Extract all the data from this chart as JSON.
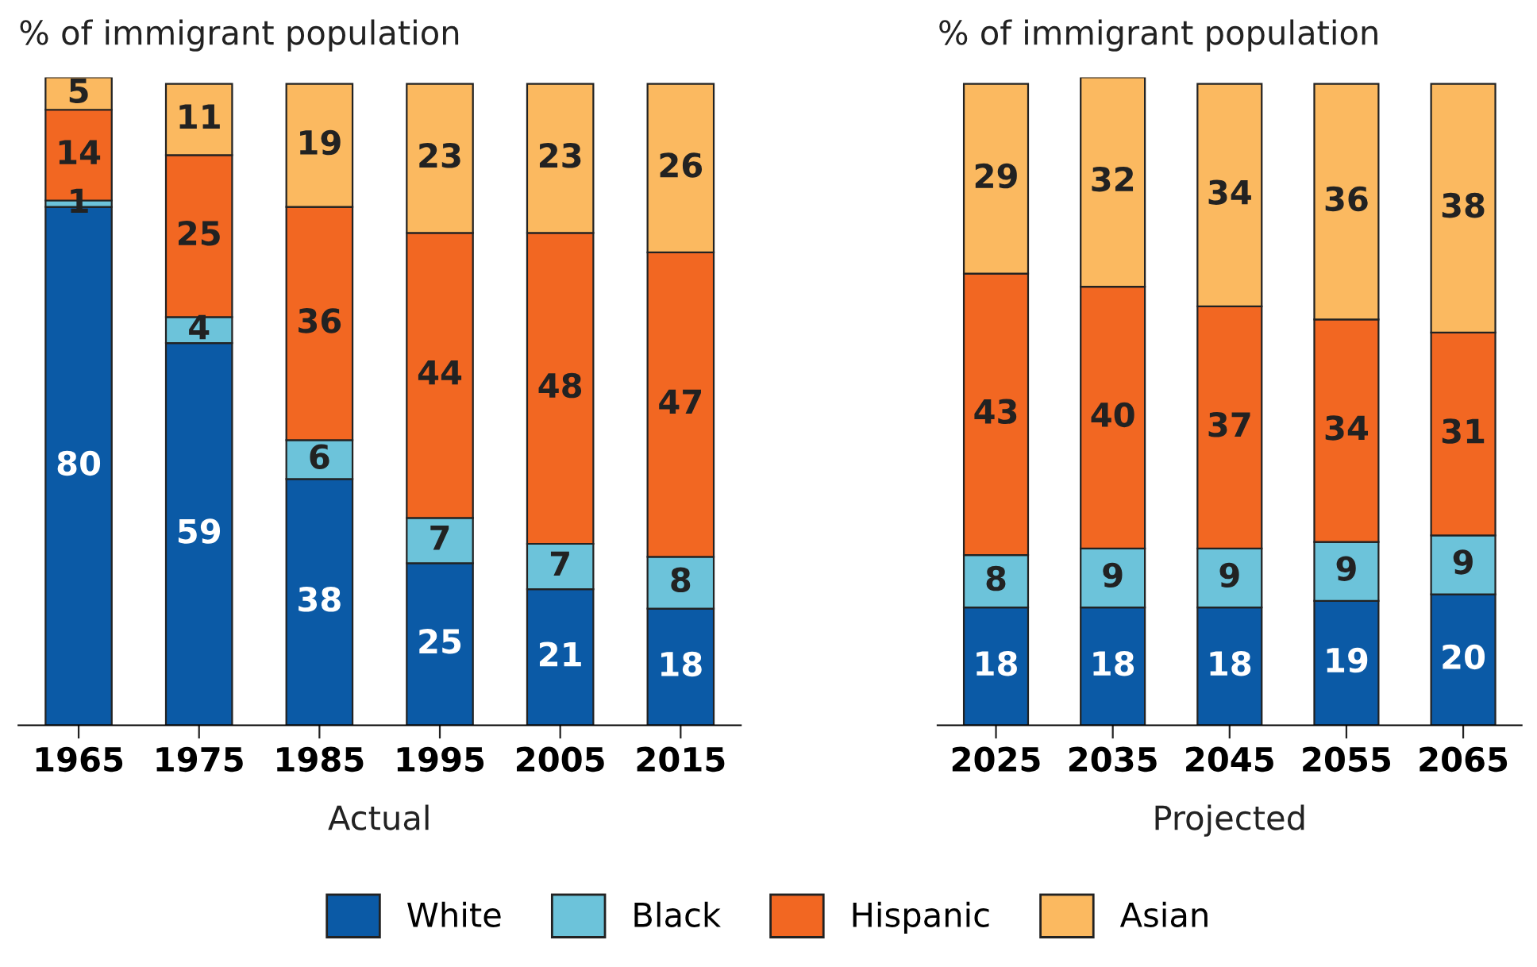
{
  "chart_data": [
    {
      "type": "bar",
      "stacked": true,
      "title": "% of immigrant population",
      "xlabel": "Actual",
      "categories": [
        "1965",
        "1975",
        "1985",
        "1995",
        "2005",
        "2015"
      ],
      "data_labels": true,
      "legend": "bottom",
      "tick_labels": "x",
      "grid": false,
      "series": [
        {
          "name": "White",
          "color": "#0b5aa6",
          "values": [
            80,
            59,
            38,
            25,
            21,
            18
          ]
        },
        {
          "name": "Black",
          "color": "#6cc3da",
          "values": [
            1,
            4,
            6,
            7,
            7,
            8
          ]
        },
        {
          "name": "Hispanic",
          "color": "#f26722",
          "values": [
            14,
            25,
            36,
            44,
            48,
            47
          ]
        },
        {
          "name": "Asian",
          "color": "#fbb960",
          "values": [
            5,
            11,
            19,
            23,
            23,
            26
          ]
        }
      ]
    },
    {
      "type": "bar",
      "stacked": true,
      "title": "% of immigrant population",
      "xlabel": "Projected",
      "categories": [
        "2025",
        "2035",
        "2045",
        "2055",
        "2065"
      ],
      "data_labels": true,
      "tick_labels": "x",
      "grid": false,
      "series": [
        {
          "color": "#0b5aa6",
          "values": [
            18,
            18,
            18,
            19,
            20
          ]
        },
        {
          "color": "#6cc3da",
          "values": [
            8,
            9,
            9,
            9,
            9
          ]
        },
        {
          "color": "#f26722",
          "values": [
            43,
            40,
            37,
            34,
            31
          ]
        },
        {
          "color": "#fbb960",
          "values": [
            29,
            32,
            34,
            36,
            38
          ]
        }
      ]
    }
  ]
}
